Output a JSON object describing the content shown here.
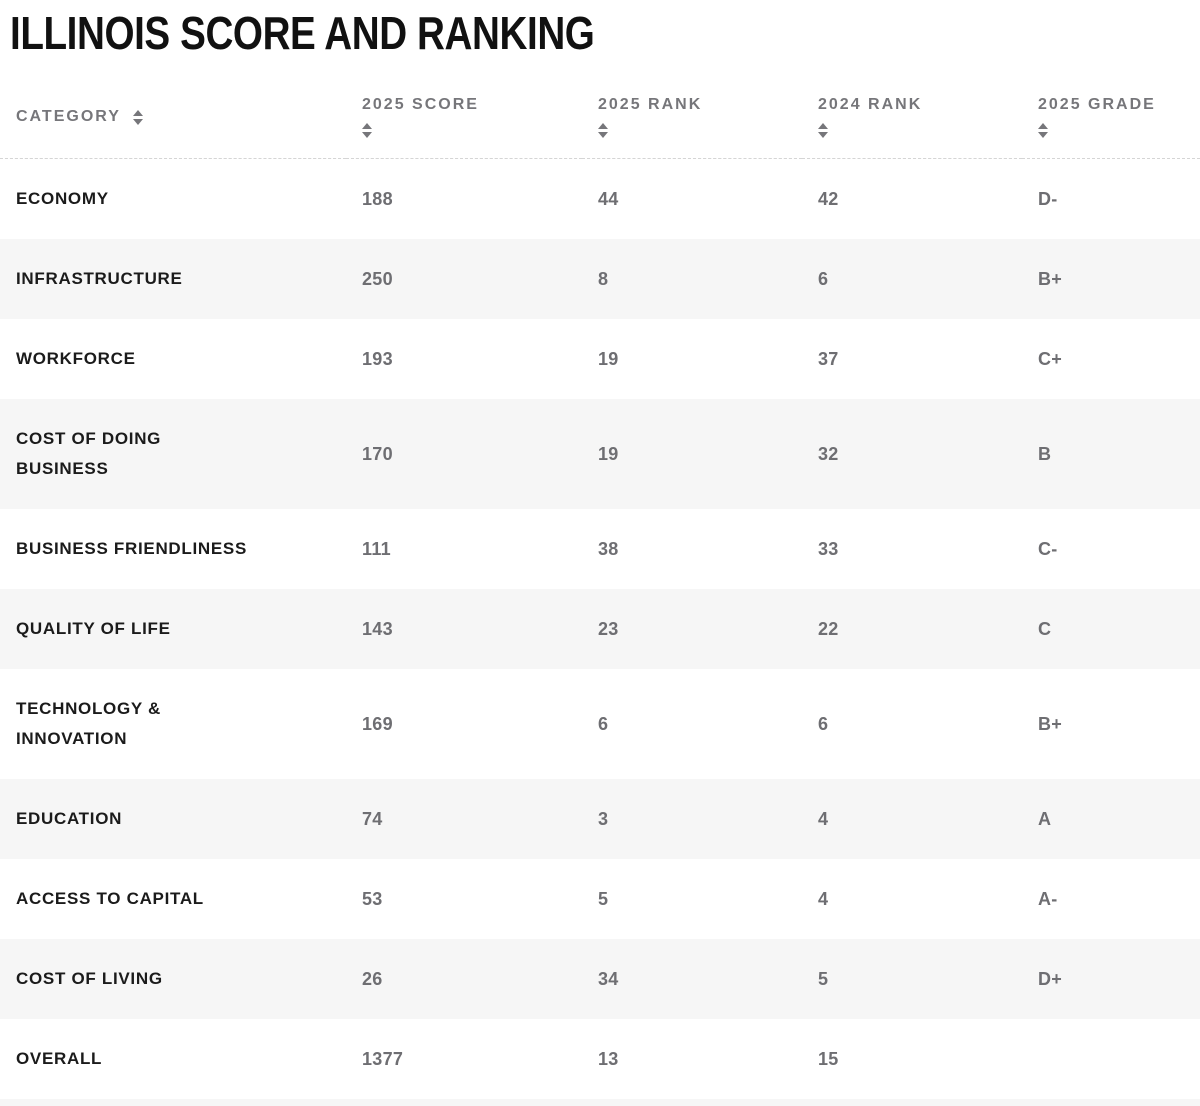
{
  "chart_data": {
    "type": "table",
    "title": "ILLINOIS SCORE AND RANKING",
    "columns": [
      "CATEGORY",
      "2025 SCORE",
      "2025 RANK",
      "2024 RANK",
      "2025 GRADE"
    ],
    "sort_icon": "up-down-arrows",
    "rows": [
      {
        "category": "ECONOMY",
        "score_2025": "188",
        "rank_2025": "44",
        "rank_2024": "42",
        "grade_2025": "D-"
      },
      {
        "category": "INFRASTRUCTURE",
        "score_2025": "250",
        "rank_2025": "8",
        "rank_2024": "6",
        "grade_2025": "B+"
      },
      {
        "category": "WORKFORCE",
        "score_2025": "193",
        "rank_2025": "19",
        "rank_2024": "37",
        "grade_2025": "C+"
      },
      {
        "category": "COST OF DOING\nBUSINESS",
        "score_2025": "170",
        "rank_2025": "19",
        "rank_2024": "32",
        "grade_2025": "B"
      },
      {
        "category": "BUSINESS FRIENDLINESS",
        "score_2025": "111",
        "rank_2025": "38",
        "rank_2024": "33",
        "grade_2025": "C-"
      },
      {
        "category": "QUALITY OF LIFE",
        "score_2025": "143",
        "rank_2025": "23",
        "rank_2024": "22",
        "grade_2025": "C"
      },
      {
        "category": "TECHNOLOGY &\nINNOVATION",
        "score_2025": "169",
        "rank_2025": "6",
        "rank_2024": "6",
        "grade_2025": "B+"
      },
      {
        "category": "EDUCATION",
        "score_2025": "74",
        "rank_2025": "3",
        "rank_2024": "4",
        "grade_2025": "A"
      },
      {
        "category": "ACCESS TO CAPITAL",
        "score_2025": "53",
        "rank_2025": "5",
        "rank_2024": "4",
        "grade_2025": "A-"
      },
      {
        "category": "COST OF LIVING",
        "score_2025": "26",
        "rank_2025": "34",
        "rank_2024": "5",
        "grade_2025": "D+"
      },
      {
        "category": "OVERALL",
        "score_2025": "1377",
        "rank_2025": "13",
        "rank_2024": "15",
        "grade_2025": ""
      }
    ],
    "colors": {
      "title_text": "#111111",
      "header_text": "#76767a",
      "category_text": "#1b1b1b",
      "value_text": "#6e6e72",
      "zebra_stripe": "#f6f6f6",
      "header_divider": "#d5d5d5",
      "background": "#ffffff"
    }
  }
}
